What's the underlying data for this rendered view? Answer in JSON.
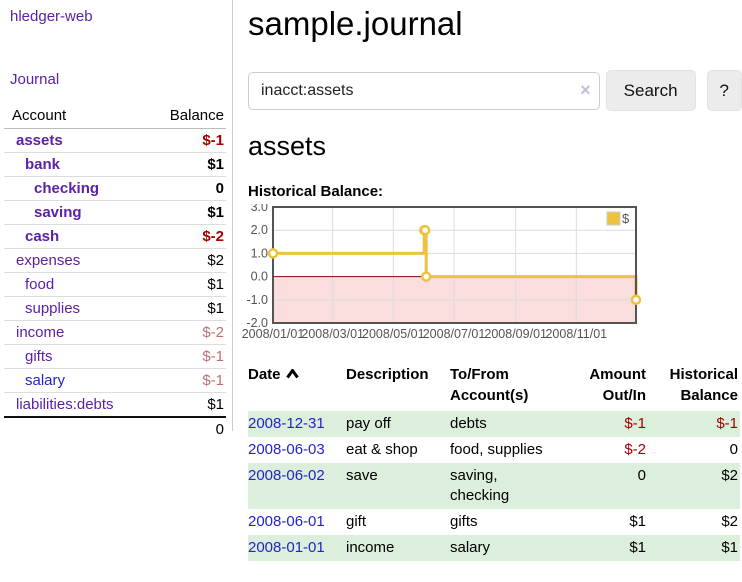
{
  "app": {
    "title": "hledger-web"
  },
  "colors": {
    "link_purple": "#5b21a8",
    "link_blue": "#2323cc",
    "negative": "#a40000",
    "negative_soft": "#bb7171",
    "row_stripe_green": "#dceedc",
    "series_gold": "#edc240",
    "chart_negative_region": "#fadddd",
    "chart_zero_line": "#8b0000",
    "button_bg": "#ececec"
  },
  "sidebar": {
    "journal_label": "Journal",
    "accounts_table": {
      "account_header": "Account",
      "balance_header": "Balance",
      "rows": [
        {
          "name": "assets",
          "depth": 1,
          "bold": true,
          "blue": false,
          "balance": "$-1"
        },
        {
          "name": "bank",
          "depth": 2,
          "bold": true,
          "blue": false,
          "balance": "$1"
        },
        {
          "name": "checking",
          "depth": 3,
          "bold": true,
          "blue": false,
          "balance": "0"
        },
        {
          "name": "saving",
          "depth": 3,
          "bold": true,
          "blue": false,
          "balance": "$1"
        },
        {
          "name": "cash",
          "depth": 2,
          "bold": true,
          "blue": false,
          "balance": "$-2"
        },
        {
          "name": "expenses",
          "depth": 1,
          "bold": false,
          "blue": false,
          "balance": "$2"
        },
        {
          "name": "food",
          "depth": 2,
          "bold": false,
          "blue": false,
          "balance": "$1"
        },
        {
          "name": "supplies",
          "depth": 2,
          "bold": false,
          "blue": false,
          "balance": "$1"
        },
        {
          "name": "income",
          "depth": 1,
          "bold": false,
          "blue": false,
          "balance": "$-2"
        },
        {
          "name": "gifts",
          "depth": 2,
          "bold": false,
          "blue": false,
          "balance": "$-1"
        },
        {
          "name": "salary",
          "depth": 2,
          "bold": false,
          "blue": true,
          "balance": "$-1"
        },
        {
          "name": "liabilities:debts",
          "depth": 1,
          "bold": false,
          "blue": false,
          "balance": "$1"
        }
      ],
      "total": "0"
    }
  },
  "header": {
    "title": "sample.journal"
  },
  "search": {
    "value": "inacct:assets",
    "clear_icon": "×",
    "button_label": "Search",
    "help_label": "?"
  },
  "account_page": {
    "heading": "assets",
    "chart_label": "Historical Balance:"
  },
  "chart_data": {
    "type": "line",
    "step": true,
    "title": "Historical Balance:",
    "series": [
      {
        "name": "$",
        "color": "#edc240",
        "points": [
          [
            "2008-01-01",
            1
          ],
          [
            "2008-06-01",
            2
          ],
          [
            "2008-06-02",
            2
          ],
          [
            "2008-06-03",
            0
          ],
          [
            "2008-12-31",
            -1
          ]
        ]
      }
    ],
    "xlim": [
      "2008-01-01",
      "2008-12-31"
    ],
    "ylim": [
      -2,
      3
    ],
    "yticks": [
      "3.0",
      "2.0",
      "1.0",
      "0.0",
      "-1.0",
      "-2.0"
    ],
    "xticks": [
      "2008/01/01",
      "2008/03/01",
      "2008/05/01",
      "2008/07/01",
      "2008/09/01",
      "2008/11/01"
    ],
    "grid": true,
    "legend_position": "top-right",
    "negative_region_color": "#fadddd",
    "zero_line_color": "#8b0000"
  },
  "register_table": {
    "headers": {
      "date": "Date",
      "description": "Description",
      "account": "To/From Account(s)",
      "amount": "Amount Out/In",
      "balance": "Historical Balance"
    },
    "sort": {
      "column": "date",
      "direction": "ascending"
    },
    "rows": [
      {
        "date": "2008-12-31",
        "description": "pay off",
        "accounts": "debts",
        "amount": "$-1",
        "balance": "$-1"
      },
      {
        "date": "2008-06-03",
        "description": "eat & shop",
        "accounts": "food, supplies",
        "amount": "$-2",
        "balance": "0"
      },
      {
        "date": "2008-06-02",
        "description": "save",
        "accounts": "saving, checking",
        "amount": "0",
        "balance": "$2"
      },
      {
        "date": "2008-06-01",
        "description": "gift",
        "accounts": "gifts",
        "amount": "$1",
        "balance": "$2"
      },
      {
        "date": "2008-01-01",
        "description": "income",
        "accounts": "salary",
        "amount": "$1",
        "balance": "$1"
      }
    ]
  }
}
